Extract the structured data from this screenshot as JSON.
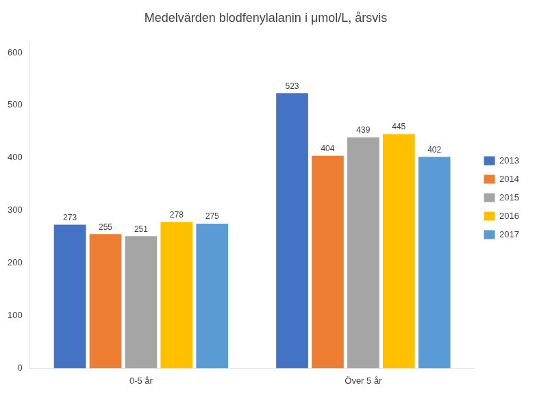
{
  "chart_data": {
    "type": "bar",
    "title": "Medelvärden blodfenylalanin i μmol/L, årsvis",
    "categories": [
      "0-5 år",
      "Över 5 år"
    ],
    "series": [
      {
        "name": "2013",
        "color": "#4472C4",
        "values": [
          273,
          523
        ]
      },
      {
        "name": "2014",
        "color": "#ED7D31",
        "values": [
          255,
          404
        ]
      },
      {
        "name": "2015",
        "color": "#A5A5A5",
        "values": [
          251,
          439
        ]
      },
      {
        "name": "2016",
        "color": "#FFC000",
        "values": [
          278,
          445
        ]
      },
      {
        "name": "2017",
        "color": "#5B9BD5",
        "values": [
          275,
          402
        ]
      }
    ],
    "ylim": [
      0,
      620
    ],
    "yticks": [
      0,
      100,
      200,
      300,
      400,
      500,
      600
    ],
    "grid": false,
    "legend": "right",
    "data_labels": true
  }
}
